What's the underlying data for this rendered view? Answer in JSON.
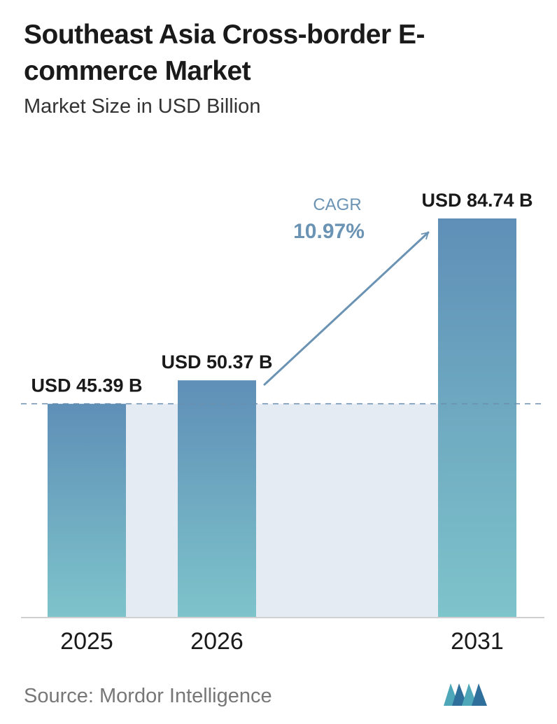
{
  "title": "Southeast Asia Cross-border E-commerce Market",
  "subtitle": "Market Size in USD Billion",
  "source": "Source:  Mordor Intelligence",
  "chart_data": {
    "type": "bar",
    "categories": [
      "2025",
      "2026",
      "2031"
    ],
    "values": [
      45.39,
      50.37,
      84.74
    ],
    "data_labels": [
      "USD 45.39 B",
      "USD 50.37 B",
      "USD 84.74 B"
    ],
    "title": "Southeast Asia Cross-border E-commerce Market",
    "subtitle": "Market Size in USD Billion",
    "xlabel": "",
    "ylabel": "",
    "ylim": [
      0,
      84.74
    ],
    "grid": false,
    "annotation": {
      "label": "CAGR",
      "value": "10.97%"
    },
    "colors": {
      "bar_top": "#5f8fb7",
      "bar_bottom": "#7ec4cb",
      "band": "#e4ebf3",
      "arrow": "#6b93b3"
    }
  },
  "logo": {
    "icon": "mordor-intelligence-logo-icon"
  }
}
